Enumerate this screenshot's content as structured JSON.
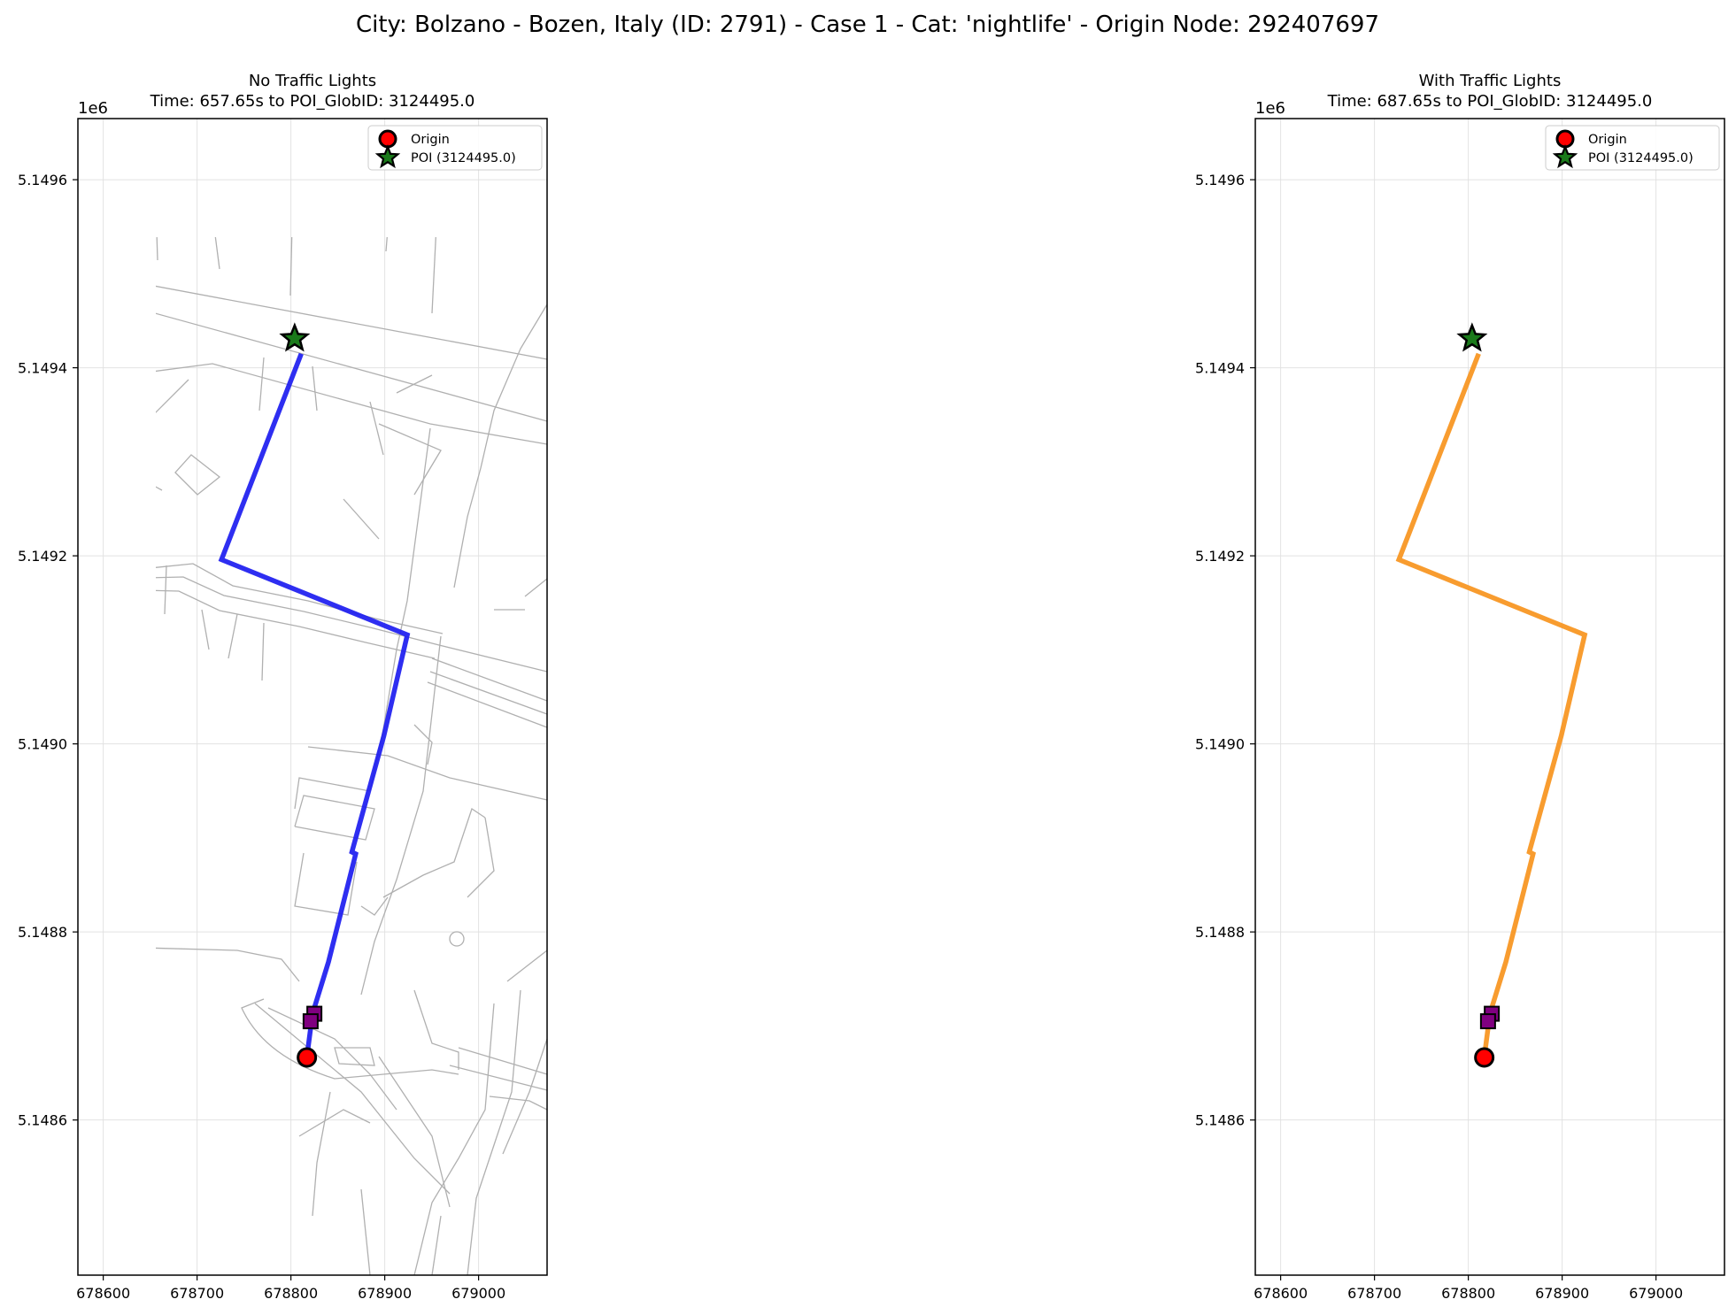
{
  "figure": {
    "suptitle": "City: Bolzano - Bozen, Italy (ID: 2791) - Case 1 - Cat: 'nightlife' - Origin Node: 292407697"
  },
  "chart_data": [
    {
      "type": "line",
      "title_line1": "No Traffic Lights",
      "title_line2": "Time: 657.65s to POI_GlobID: 3124495.0",
      "y_offset_label": "1e6",
      "xlim": [
        678573,
        679073
      ],
      "ylim": [
        5.148435,
        5.149665
      ],
      "y_scale_factor": 1000000,
      "xticks": [
        678600,
        678700,
        678800,
        678900,
        679000
      ],
      "yticks": [
        5.1486,
        5.1488,
        5.149,
        5.1492,
        5.1494,
        5.1496
      ],
      "yticklabels": [
        "5.1486",
        "5.1488",
        "5.1490",
        "5.1492",
        "5.1494",
        "5.1496"
      ],
      "grid": true,
      "legend_position": "upper right",
      "legend": [
        {
          "label": "Origin",
          "marker": "circle",
          "color": "#ff0000"
        },
        {
          "label": "POI (3124495.0)",
          "marker": "star",
          "color": "#1a7a1a"
        }
      ],
      "route": {
        "color": "#1c1cf0",
        "x": [
          678817,
          678823,
          678840,
          678869,
          678865,
          678899,
          678924,
          678726,
          678811
        ],
        "y": [
          5.1486665,
          5.148713,
          5.148768,
          5.148883,
          5.148885,
          5.1490085,
          5.149116,
          5.149196,
          5.149415
        ]
      },
      "origin": {
        "x": 678817,
        "y": 5.1486665
      },
      "poi": {
        "x": 678804,
        "y": 5.149431
      },
      "squares": [
        {
          "x": 678825,
          "y": 5.148713,
          "color": "#800080"
        },
        {
          "x": 678821,
          "y": 5.148705,
          "color": "#800080"
        }
      ]
    },
    {
      "type": "line",
      "title_line1": "With Traffic Lights",
      "title_line2": "Time: 687.65s to POI_GlobID: 3124495.0",
      "y_offset_label": "1e6",
      "xlim": [
        678573,
        679073
      ],
      "ylim": [
        5.148435,
        5.149665
      ],
      "y_scale_factor": 1000000,
      "xticks": [
        678600,
        678700,
        678800,
        678900,
        679000
      ],
      "yticks": [
        5.1486,
        5.1488,
        5.149,
        5.1492,
        5.1494,
        5.1496
      ],
      "yticklabels": [
        "5.1486",
        "5.1488",
        "5.1490",
        "5.1492",
        "5.1494",
        "5.1496"
      ],
      "grid": true,
      "legend_position": "upper right",
      "legend": [
        {
          "label": "Origin",
          "marker": "circle",
          "color": "#ff0000"
        },
        {
          "label": "POI (3124495.0)",
          "marker": "star",
          "color": "#1a7a1a"
        }
      ],
      "route": {
        "color": "#f7941d",
        "x": [
          678817,
          678823,
          678840,
          678869,
          678865,
          678899,
          678924,
          678726,
          678811
        ],
        "y": [
          5.1486665,
          5.148713,
          5.148768,
          5.148883,
          5.148885,
          5.1490085,
          5.149116,
          5.149196,
          5.149415
        ]
      },
      "origin": {
        "x": 678817,
        "y": 5.1486665
      },
      "poi": {
        "x": 678804,
        "y": 5.149431
      },
      "squares": [
        {
          "x": 678825,
          "y": 5.148713,
          "color": "#800080"
        },
        {
          "x": 678821,
          "y": 5.148705,
          "color": "#800080"
        }
      ]
    }
  ]
}
